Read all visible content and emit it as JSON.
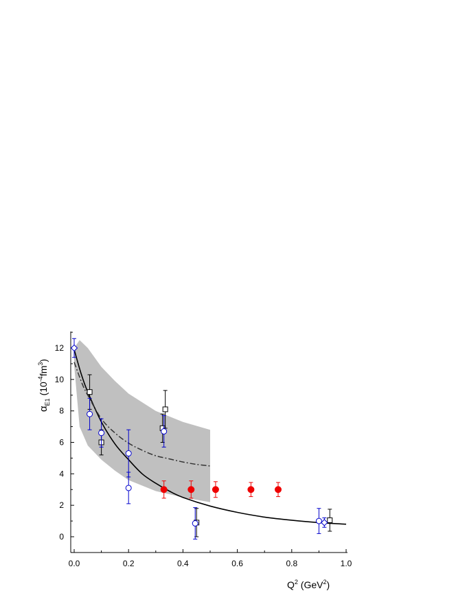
{
  "chart_data": {
    "type": "scatter",
    "xlabel": {
      "main": "Q",
      "sup": "2",
      "unit_open": " (GeV",
      "unit_sup": "2",
      "unit_close": ")"
    },
    "ylabel": {
      "alpha": "α",
      "sub": "E1",
      "open": " (10",
      "exp": "-4",
      "mid": "fm",
      "sup": "3",
      "close": ")"
    },
    "xlim": [
      0.0,
      1.0
    ],
    "ylim": [
      -1.0,
      13.0
    ],
    "x_ticks": [
      "0.0",
      "0.2",
      "0.4",
      "0.6",
      "0.8",
      "1.0"
    ],
    "x_tick_values": [
      0.0,
      0.2,
      0.4,
      0.6,
      0.8,
      1.0
    ],
    "y_ticks": [
      "0",
      "2",
      "4",
      "6",
      "8",
      "10",
      "12"
    ],
    "y_tick_values": [
      0,
      2,
      4,
      6,
      8,
      10,
      12
    ],
    "grid": false,
    "band": {
      "color": "#c0c0c0",
      "upper": [
        [
          0.0,
          12.0
        ],
        [
          0.02,
          12.5
        ],
        [
          0.05,
          12.0
        ],
        [
          0.1,
          10.8
        ],
        [
          0.15,
          9.9
        ],
        [
          0.2,
          9.1
        ],
        [
          0.3,
          8.0
        ],
        [
          0.4,
          7.3
        ],
        [
          0.5,
          6.8
        ]
      ],
      "lower": [
        [
          0.0,
          10.9
        ],
        [
          0.02,
          7.0
        ],
        [
          0.05,
          5.8
        ],
        [
          0.1,
          4.9
        ],
        [
          0.15,
          4.2
        ],
        [
          0.2,
          3.6
        ],
        [
          0.3,
          2.9
        ],
        [
          0.4,
          2.5
        ],
        [
          0.5,
          2.2
        ]
      ]
    },
    "curves": [
      {
        "style": "solid",
        "color": "#000000",
        "points": [
          [
            0.0,
            11.9
          ],
          [
            0.025,
            10.4
          ],
          [
            0.05,
            9.2
          ],
          [
            0.1,
            7.3
          ],
          [
            0.15,
            5.9
          ],
          [
            0.2,
            4.9
          ],
          [
            0.25,
            4.0
          ],
          [
            0.3,
            3.4
          ],
          [
            0.35,
            2.9
          ],
          [
            0.4,
            2.5
          ],
          [
            0.5,
            1.95
          ],
          [
            0.6,
            1.55
          ],
          [
            0.7,
            1.25
          ],
          [
            0.8,
            1.05
          ],
          [
            0.9,
            0.9
          ],
          [
            1.0,
            0.8
          ]
        ]
      },
      {
        "style": "dash-dot",
        "color": "#333333",
        "points": [
          [
            0.0,
            11.1
          ],
          [
            0.03,
            9.7
          ],
          [
            0.05,
            9.0
          ],
          [
            0.1,
            7.5
          ],
          [
            0.15,
            6.6
          ],
          [
            0.2,
            5.95
          ],
          [
            0.25,
            5.5
          ],
          [
            0.3,
            5.15
          ],
          [
            0.35,
            4.95
          ],
          [
            0.4,
            4.75
          ],
          [
            0.45,
            4.6
          ],
          [
            0.5,
            4.5
          ]
        ]
      }
    ],
    "series": [
      {
        "marker": "open-square",
        "color": "#000000",
        "points": [
          [
            0.057,
            9.2,
            1.1
          ],
          [
            0.1,
            6.0,
            0.8
          ],
          [
            0.325,
            6.9,
            0.9
          ],
          [
            0.335,
            8.1,
            1.2
          ],
          [
            0.45,
            0.9,
            0.9
          ],
          [
            0.94,
            1.05,
            0.7
          ]
        ]
      },
      {
        "marker": "open-circle",
        "color": "#0000cc",
        "points": [
          [
            0.057,
            7.8,
            1.0
          ],
          [
            0.1,
            6.6,
            0.9
          ],
          [
            0.2,
            5.3,
            1.5
          ],
          [
            0.2,
            3.1,
            1.0
          ],
          [
            0.33,
            6.7,
            1.0
          ],
          [
            0.445,
            0.85,
            1.0
          ],
          [
            0.9,
            1.0,
            0.8
          ]
        ]
      },
      {
        "marker": "open-diamond",
        "color": "#0000cc",
        "points": [
          [
            0.0,
            12.0,
            0.6
          ],
          [
            0.92,
            0.9,
            0.3
          ]
        ]
      },
      {
        "marker": "filled-circle",
        "color": "#ee0000",
        "points": [
          [
            0.33,
            3.0,
            0.55
          ],
          [
            0.43,
            3.0,
            0.55
          ],
          [
            0.52,
            3.0,
            0.5
          ],
          [
            0.65,
            3.0,
            0.45
          ],
          [
            0.75,
            3.0,
            0.45
          ]
        ]
      }
    ]
  }
}
